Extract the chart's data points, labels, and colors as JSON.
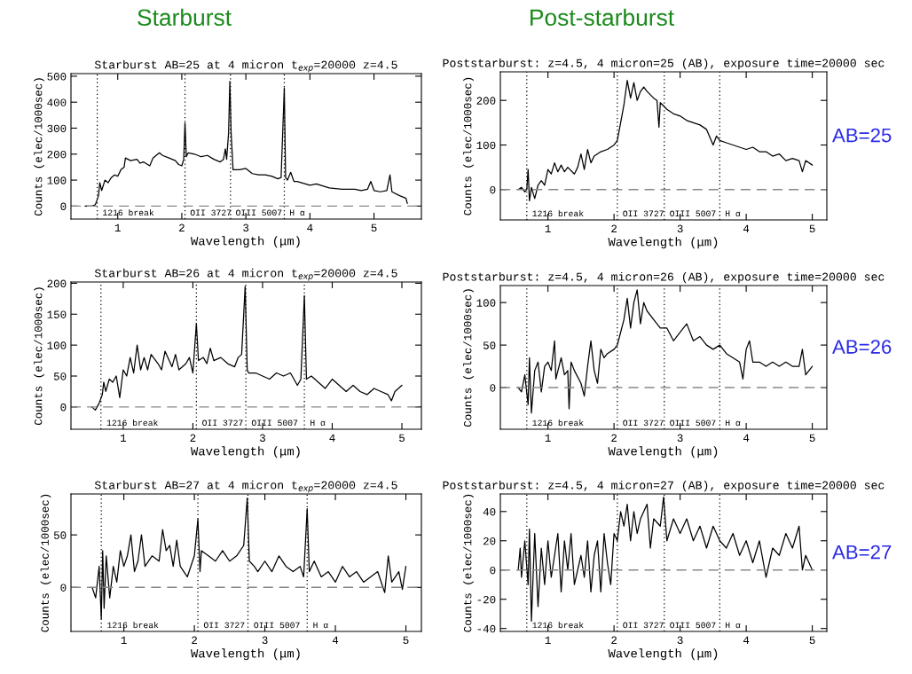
{
  "chart_data": [
    {
      "type": "line",
      "title": "Starburst AB=25 at 4 micron t$_{exp}$=20000 z=4.5",
      "xlabel": "Wavelength (μm)",
      "ylabel": "Counts (elec/1000sec)",
      "annotations": [
        "Starburst"
      ],
      "x": [
        0.49,
        0.6,
        0.65,
        0.7,
        0.72,
        0.75,
        0.8,
        0.85,
        0.9,
        0.95,
        1.0,
        1.05,
        1.1,
        1.12,
        1.2,
        1.3,
        1.35,
        1.4,
        1.5,
        1.55,
        1.6,
        1.65,
        1.7,
        1.8,
        1.9,
        1.95,
        2.0,
        2.03,
        2.05,
        2.07,
        2.1,
        2.2,
        2.3,
        2.4,
        2.5,
        2.6,
        2.65,
        2.68,
        2.7,
        2.73,
        2.75,
        2.77,
        2.8,
        2.9,
        3.0,
        3.1,
        3.2,
        3.3,
        3.4,
        3.5,
        3.55,
        3.6,
        3.62,
        3.65,
        3.7,
        3.75,
        3.8,
        4.0,
        4.1,
        4.3,
        4.5,
        4.7,
        4.8,
        4.9,
        4.95,
        5.0,
        5.1,
        5.2,
        5.25,
        5.28,
        5.4,
        5.5,
        5.52
      ],
      "series": [
        {
          "color": "#000000",
          "values": [
            0,
            0,
            5,
            40,
            90,
            60,
            100,
            90,
            110,
            120,
            115,
            140,
            150,
            185,
            175,
            180,
            165,
            170,
            155,
            185,
            195,
            205,
            195,
            185,
            175,
            160,
            155,
            180,
            320,
            190,
            205,
            200,
            190,
            195,
            180,
            170,
            180,
            220,
            180,
            280,
            480,
            280,
            140,
            140,
            145,
            125,
            120,
            120,
            115,
            105,
            110,
            455,
            110,
            100,
            130,
            95,
            95,
            80,
            85,
            70,
            65,
            65,
            60,
            65,
            95,
            60,
            55,
            60,
            120,
            55,
            40,
            30,
            10
          ]
        }
      ],
      "xlim": [
        0.27,
        5.74
      ],
      "ylim": [
        -50,
        510
      ],
      "xticks": [
        1,
        2,
        3,
        4,
        5
      ],
      "yticks": [
        0,
        100,
        200,
        300,
        400,
        500
      ],
      "ref_lines": [
        {
          "axis": "x",
          "value": 0.68,
          "label": "1216 break",
          "line_style": "dotted",
          "color": "#000000"
        },
        {
          "axis": "x",
          "value": 2.05,
          "label": "OII 3727",
          "line_style": "dotted",
          "color": "#000000"
        },
        {
          "axis": "x",
          "value": 2.76,
          "label": "OIII 5007",
          "line_style": "dotted",
          "color": "#000000"
        },
        {
          "axis": "x",
          "value": 3.6,
          "label": "H α",
          "line_style": "dotted",
          "color": "#000000"
        },
        {
          "axis": "y",
          "value": 0,
          "line_style": "dashed",
          "color": "#888888"
        }
      ]
    },
    {
      "type": "line",
      "title": "Poststarburst: z=4.5, 4 micron=25 (AB), exposure time=20000 sec",
      "xlabel": "Wavelength (μm)",
      "ylabel": "Counts (elec/1000sec)",
      "annotations": [
        "Post-starburst",
        "AB=25"
      ],
      "x": [
        0.55,
        0.6,
        0.65,
        0.68,
        0.7,
        0.72,
        0.75,
        0.8,
        0.85,
        0.9,
        0.95,
        1.0,
        1.05,
        1.1,
        1.15,
        1.2,
        1.25,
        1.3,
        1.4,
        1.45,
        1.5,
        1.55,
        1.6,
        1.65,
        1.7,
        1.8,
        1.9,
        1.95,
        2.0,
        2.05,
        2.1,
        2.15,
        2.2,
        2.25,
        2.3,
        2.35,
        2.4,
        2.45,
        2.5,
        2.6,
        2.65,
        2.68,
        2.7,
        2.8,
        2.9,
        3.0,
        3.1,
        3.2,
        3.3,
        3.4,
        3.5,
        3.55,
        3.6,
        3.7,
        3.8,
        3.9,
        4.0,
        4.1,
        4.2,
        4.3,
        4.4,
        4.5,
        4.6,
        4.7,
        4.8,
        4.85,
        4.9,
        5.0
      ],
      "series": [
        {
          "color": "#000000",
          "values": [
            0,
            5,
            -5,
            0,
            45,
            -25,
            5,
            -20,
            10,
            20,
            10,
            45,
            35,
            60,
            40,
            55,
            40,
            50,
            35,
            50,
            80,
            45,
            90,
            60,
            75,
            85,
            90,
            95,
            100,
            110,
            150,
            190,
            245,
            205,
            240,
            200,
            220,
            230,
            220,
            205,
            200,
            140,
            195,
            180,
            170,
            165,
            155,
            150,
            145,
            135,
            100,
            120,
            110,
            105,
            100,
            95,
            90,
            95,
            85,
            85,
            75,
            80,
            65,
            70,
            65,
            40,
            65,
            55
          ]
        }
      ],
      "xlim": [
        0.28,
        5.22
      ],
      "ylim": [
        -68,
        264
      ],
      "xticks": [
        1,
        2,
        3,
        4,
        5
      ],
      "yticks": [
        0,
        100,
        200
      ],
      "ref_lines": [
        {
          "axis": "x",
          "value": 0.68,
          "label": "1216 break",
          "line_style": "dotted",
          "color": "#000000"
        },
        {
          "axis": "x",
          "value": 2.05,
          "label": "OII 3727",
          "line_style": "dotted",
          "color": "#000000"
        },
        {
          "axis": "x",
          "value": 2.76,
          "label": "OIII 5007",
          "line_style": "dotted",
          "color": "#000000"
        },
        {
          "axis": "x",
          "value": 3.6,
          "label": "H α",
          "line_style": "dotted",
          "color": "#000000"
        },
        {
          "axis": "y",
          "value": 0,
          "line_style": "dashed",
          "color": "#888888"
        }
      ]
    },
    {
      "type": "line",
      "title": "Starburst AB=26 at 4 micron t$_{exp}$=20000 z=4.5",
      "xlabel": "Wavelength (μm)",
      "ylabel": "Counts (elec/1000sec)",
      "x": [
        0.55,
        0.6,
        0.65,
        0.7,
        0.72,
        0.75,
        0.8,
        0.85,
        0.9,
        0.95,
        1.0,
        1.05,
        1.1,
        1.15,
        1.2,
        1.25,
        1.3,
        1.35,
        1.4,
        1.5,
        1.55,
        1.6,
        1.7,
        1.75,
        1.8,
        1.9,
        1.95,
        2.0,
        2.05,
        2.08,
        2.15,
        2.2,
        2.25,
        2.3,
        2.4,
        2.5,
        2.6,
        2.65,
        2.7,
        2.75,
        2.78,
        2.8,
        2.9,
        3.0,
        3.1,
        3.2,
        3.3,
        3.4,
        3.5,
        3.55,
        3.6,
        3.63,
        3.7,
        3.8,
        3.9,
        4.0,
        4.1,
        4.2,
        4.3,
        4.4,
        4.5,
        4.6,
        4.7,
        4.8,
        4.85,
        4.9,
        5.0
      ],
      "series": [
        {
          "color": "#000000",
          "values": [
            0,
            -5,
            5,
            20,
            40,
            25,
            45,
            40,
            50,
            15,
            60,
            50,
            80,
            55,
            100,
            60,
            80,
            60,
            85,
            70,
            60,
            90,
            65,
            85,
            60,
            70,
            80,
            55,
            135,
            75,
            80,
            70,
            95,
            75,
            80,
            70,
            65,
            80,
            85,
            195,
            60,
            55,
            55,
            50,
            45,
            55,
            50,
            55,
            35,
            45,
            180,
            45,
            50,
            40,
            30,
            45,
            35,
            25,
            35,
            25,
            20,
            30,
            25,
            20,
            10,
            25,
            35
          ]
        }
      ],
      "xlim": [
        0.25,
        5.28
      ],
      "ylim": [
        -36,
        202
      ],
      "xticks": [
        1,
        2,
        3,
        4,
        5
      ],
      "yticks": [
        0,
        50,
        100,
        150,
        200
      ],
      "ref_lines": [
        {
          "axis": "x",
          "value": 0.68,
          "label": "1216 break",
          "line_style": "dotted",
          "color": "#000000"
        },
        {
          "axis": "x",
          "value": 2.05,
          "label": "OII 3727",
          "line_style": "dotted",
          "color": "#000000"
        },
        {
          "axis": "x",
          "value": 2.76,
          "label": "OIII 5007",
          "line_style": "dotted",
          "color": "#000000"
        },
        {
          "axis": "x",
          "value": 3.6,
          "label": "H α",
          "line_style": "dotted",
          "color": "#000000"
        },
        {
          "axis": "y",
          "value": 0,
          "line_style": "dashed",
          "color": "#888888"
        }
      ]
    },
    {
      "type": "line",
      "title": "Poststarburst: z=4.5, 4 micron=26 (AB), exposure time=20000 sec",
      "xlabel": "Wavelength (μm)",
      "ylabel": "Counts (elec/1000sec)",
      "annotations": [
        "AB=26"
      ],
      "x": [
        0.55,
        0.6,
        0.65,
        0.7,
        0.72,
        0.75,
        0.8,
        0.85,
        0.9,
        0.95,
        1.0,
        1.05,
        1.1,
        1.12,
        1.2,
        1.25,
        1.3,
        1.32,
        1.35,
        1.4,
        1.5,
        1.55,
        1.6,
        1.65,
        1.7,
        1.75,
        1.8,
        1.85,
        1.9,
        2.0,
        2.05,
        2.1,
        2.15,
        2.2,
        2.25,
        2.3,
        2.35,
        2.4,
        2.45,
        2.5,
        2.6,
        2.7,
        2.8,
        2.9,
        3.0,
        3.1,
        3.2,
        3.3,
        3.4,
        3.5,
        3.6,
        3.7,
        3.8,
        3.9,
        3.95,
        4.0,
        4.05,
        4.1,
        4.2,
        4.3,
        4.4,
        4.5,
        4.6,
        4.7,
        4.8,
        4.85,
        4.9,
        5.0
      ],
      "series": [
        {
          "color": "#000000",
          "values": [
            0,
            -5,
            15,
            -20,
            35,
            -30,
            20,
            30,
            -5,
            25,
            30,
            20,
            55,
            10,
            35,
            15,
            20,
            -25,
            30,
            20,
            5,
            -10,
            25,
            55,
            20,
            5,
            45,
            35,
            40,
            45,
            50,
            65,
            80,
            105,
            70,
            100,
            115,
            75,
            100,
            90,
            80,
            70,
            70,
            55,
            65,
            75,
            55,
            60,
            50,
            45,
            50,
            40,
            35,
            30,
            10,
            45,
            55,
            30,
            30,
            25,
            30,
            25,
            30,
            25,
            25,
            45,
            15,
            25
          ]
        }
      ],
      "xlim": [
        0.28,
        5.22
      ],
      "ylim": [
        -49,
        120
      ],
      "xticks": [
        1,
        2,
        3,
        4,
        5
      ],
      "yticks": [
        0,
        50,
        100
      ],
      "ref_lines": [
        {
          "axis": "x",
          "value": 0.68,
          "label": "1216 break",
          "line_style": "dotted",
          "color": "#000000"
        },
        {
          "axis": "x",
          "value": 2.05,
          "label": "OII 3727",
          "line_style": "dotted",
          "color": "#000000"
        },
        {
          "axis": "x",
          "value": 2.76,
          "label": "OIII 5007",
          "line_style": "dotted",
          "color": "#000000"
        },
        {
          "axis": "x",
          "value": 3.6,
          "label": "H α",
          "line_style": "dotted",
          "color": "#000000"
        },
        {
          "axis": "y",
          "value": 0,
          "line_style": "dashed",
          "color": "#888888"
        }
      ]
    },
    {
      "type": "line",
      "title": "Starburst AB=27 at 4 micron t$_{exp}$=20000 z=4.5",
      "xlabel": "Wavelength (μm)",
      "ylabel": "Counts (elec/1000sec)",
      "x": [
        0.55,
        0.6,
        0.65,
        0.68,
        0.7,
        0.72,
        0.75,
        0.8,
        0.85,
        0.9,
        0.95,
        1.0,
        1.05,
        1.1,
        1.15,
        1.2,
        1.25,
        1.3,
        1.4,
        1.5,
        1.55,
        1.6,
        1.65,
        1.7,
        1.75,
        1.8,
        1.9,
        2.0,
        2.05,
        2.08,
        2.1,
        2.2,
        2.3,
        2.4,
        2.5,
        2.6,
        2.7,
        2.75,
        2.78,
        2.85,
        2.9,
        3.0,
        3.1,
        3.2,
        3.3,
        3.4,
        3.5,
        3.55,
        3.6,
        3.63,
        3.7,
        3.8,
        3.9,
        4.0,
        4.1,
        4.2,
        4.3,
        4.4,
        4.5,
        4.6,
        4.7,
        4.75,
        4.8,
        4.9,
        4.95,
        5.0
      ],
      "series": [
        {
          "color": "#000000",
          "values": [
            0,
            -10,
            20,
            -30,
            35,
            -20,
            30,
            -10,
            20,
            5,
            35,
            20,
            30,
            50,
            15,
            25,
            50,
            20,
            30,
            25,
            55,
            35,
            40,
            20,
            45,
            20,
            10,
            30,
            65,
            15,
            35,
            30,
            25,
            35,
            25,
            30,
            40,
            85,
            25,
            20,
            15,
            25,
            15,
            30,
            20,
            15,
            20,
            10,
            75,
            15,
            25,
            10,
            15,
            5,
            20,
            10,
            15,
            5,
            10,
            15,
            -5,
            30,
            5,
            15,
            -2,
            20
          ]
        }
      ],
      "xlim": [
        0.25,
        5.22
      ],
      "ylim": [
        -42,
        89
      ],
      "xticks": [
        1,
        2,
        3,
        4,
        5
      ],
      "yticks": [
        0,
        50
      ],
      "ref_lines": [
        {
          "axis": "x",
          "value": 0.68,
          "label": "1216 break",
          "line_style": "dotted",
          "color": "#000000"
        },
        {
          "axis": "x",
          "value": 2.05,
          "label": "OII 3727",
          "line_style": "dotted",
          "color": "#000000"
        },
        {
          "axis": "x",
          "value": 2.76,
          "label": "OIII 5007",
          "line_style": "dotted",
          "color": "#000000"
        },
        {
          "axis": "x",
          "value": 3.6,
          "label": "H α",
          "line_style": "dotted",
          "color": "#000000"
        },
        {
          "axis": "y",
          "value": 0,
          "line_style": "dashed",
          "color": "#888888"
        }
      ]
    },
    {
      "type": "line",
      "title": "Poststarburst: z=4.5, 4 micron=27 (AB), exposure time=20000 sec",
      "xlabel": "Wavelength (μm)",
      "ylabel": "Counts (elec/1000sec)",
      "annotations": [
        "AB=27"
      ],
      "x": [
        0.55,
        0.58,
        0.6,
        0.65,
        0.7,
        0.72,
        0.75,
        0.8,
        0.85,
        0.9,
        0.95,
        1.0,
        1.05,
        1.1,
        1.15,
        1.2,
        1.25,
        1.3,
        1.35,
        1.4,
        1.5,
        1.55,
        1.6,
        1.65,
        1.7,
        1.75,
        1.8,
        1.85,
        1.9,
        1.95,
        2.0,
        2.05,
        2.1,
        2.15,
        2.2,
        2.25,
        2.3,
        2.35,
        2.4,
        2.5,
        2.55,
        2.6,
        2.7,
        2.75,
        2.8,
        2.9,
        3.0,
        3.1,
        3.2,
        3.3,
        3.4,
        3.5,
        3.6,
        3.7,
        3.8,
        3.9,
        4.0,
        4.1,
        4.2,
        4.3,
        4.4,
        4.5,
        4.6,
        4.7,
        4.8,
        4.85,
        4.9,
        5.0
      ],
      "series": [
        {
          "color": "#000000",
          "values": [
            0,
            15,
            -5,
            20,
            -10,
            28,
            -35,
            25,
            -25,
            15,
            -10,
            20,
            -5,
            10,
            25,
            -15,
            20,
            0,
            25,
            -10,
            10,
            -5,
            20,
            -15,
            10,
            20,
            -15,
            25,
            5,
            -10,
            25,
            20,
            40,
            30,
            45,
            20,
            40,
            25,
            35,
            45,
            15,
            35,
            30,
            50,
            20,
            35,
            25,
            35,
            20,
            30,
            15,
            30,
            20,
            15,
            25,
            10,
            20,
            5,
            20,
            -5,
            15,
            10,
            25,
            15,
            30,
            0,
            10,
            0
          ]
        }
      ],
      "xlim": [
        0.28,
        5.22
      ],
      "ylim": [
        -42,
        52
      ],
      "xticks": [
        1,
        2,
        3,
        4,
        5
      ],
      "yticks": [
        -40,
        -20,
        0,
        20,
        40
      ],
      "ref_lines": [
        {
          "axis": "x",
          "value": 0.68,
          "label": "1216 break",
          "line_style": "dotted",
          "color": "#000000"
        },
        {
          "axis": "x",
          "value": 2.05,
          "label": "OII 3727",
          "line_style": "dotted",
          "color": "#000000"
        },
        {
          "axis": "x",
          "value": 2.76,
          "label": "OIII 5007",
          "line_style": "dotted",
          "color": "#000000"
        },
        {
          "axis": "x",
          "value": 3.6,
          "label": "H α",
          "line_style": "dotted",
          "color": "#000000"
        },
        {
          "axis": "y",
          "value": 0,
          "line_style": "dashed",
          "color": "#888888"
        }
      ]
    }
  ]
}
